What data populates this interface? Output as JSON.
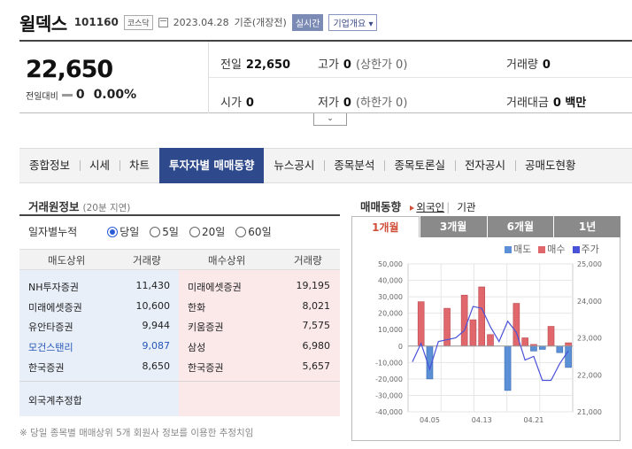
{
  "header": {
    "name": "윌덱스",
    "code": "101160",
    "market": "코스닥",
    "date": "2023.04.28",
    "basis": "기준(개장전)",
    "realtime": "실시간",
    "overview": "기업개요"
  },
  "summary": {
    "price": "22,650",
    "change_label": "전일대비",
    "change_value": "0",
    "change_pct": "0.00%",
    "prev_label": "전일",
    "prev_value": "22,650",
    "high_label": "고가",
    "high_value": "0",
    "high_sub": "(상한가 0)",
    "volume_label": "거래량",
    "volume_value": "0",
    "open_label": "시가",
    "open_value": "0",
    "low_label": "저가",
    "low_value": "0",
    "low_sub": "(하한가 0)",
    "amount_label": "거래대금",
    "amount_value": "0 백만"
  },
  "tabs": [
    "종합정보",
    "시세",
    "차트",
    "투자자별 매매동향",
    "뉴스공시",
    "종목분석",
    "종목토론실",
    "전자공시",
    "공매도현황"
  ],
  "active_tab": "투자자별 매매동향",
  "left": {
    "title": "거래원정보",
    "subtitle": "(20분 지연)",
    "period_label": "일자별누적",
    "periods": [
      "당일",
      "5일",
      "20일",
      "60일"
    ],
    "selected_period": "당일",
    "col_sell": "매도상위",
    "col_sell_vol": "거래량",
    "col_buy": "매수상위",
    "col_buy_vol": "거래량",
    "sell": [
      {
        "name": "NH투자증권",
        "vol": "11,430"
      },
      {
        "name": "미래에셋증권",
        "vol": "10,600"
      },
      {
        "name": "유안타증권",
        "vol": "9,944"
      },
      {
        "name": "모건스탠리",
        "vol": "9,087"
      },
      {
        "name": "한국증권",
        "vol": "8,650"
      }
    ],
    "buy": [
      {
        "name": "미래에셋증권",
        "vol": "19,195"
      },
      {
        "name": "한화",
        "vol": "8,021"
      },
      {
        "name": "키움증권",
        "vol": "7,575"
      },
      {
        "name": "삼성",
        "vol": "6,980"
      },
      {
        "name": "한국증권",
        "vol": "5,657"
      }
    ],
    "foreign_label": "외국계추정합",
    "note": "※ 당일 종목별 매매상위 5개 회원사 정보를 이용한 추정치임"
  },
  "right": {
    "title": "매매동향",
    "opt_foreign": "외국인",
    "opt_inst": "기관",
    "chart_tabs": [
      "1개월",
      "3개월",
      "6개월",
      "1년"
    ],
    "active_chart_tab": "1개월",
    "legend": [
      "매도",
      "매수",
      "주가"
    ],
    "colors": {
      "sell": "#5b8fd6",
      "buy": "#e0676c",
      "price": "#4a52d9"
    }
  },
  "chart_data": {
    "type": "bar",
    "x_ticks": [
      "04.05",
      "04.13",
      "04.21"
    ],
    "y_left_ticks": [
      "50,000",
      "40,000",
      "30,000",
      "20,000",
      "10,000",
      "0",
      "-10,000",
      "-20,000",
      "-30,000",
      "-40,000"
    ],
    "y_right_ticks": [
      "25,000",
      "24,000",
      "23,000",
      "22,000",
      "21,000"
    ],
    "ylim_left": [
      -40000,
      50000
    ],
    "ylim_right": [
      21000,
      25000
    ],
    "series": [
      {
        "name": "매수",
        "values": [
          0,
          27000,
          0,
          0,
          23000,
          0,
          31000,
          16000,
          36000,
          7000,
          0,
          0,
          26000,
          5000,
          1000,
          0,
          12000,
          0,
          2000
        ]
      },
      {
        "name": "매도",
        "values": [
          0,
          0,
          -20000,
          0,
          0,
          0,
          0,
          0,
          0,
          0,
          0,
          -27000,
          0,
          0,
          -3000,
          -2000,
          0,
          -4000,
          -13000
        ]
      },
      {
        "name": "주가",
        "values": [
          22350,
          22850,
          22150,
          22900,
          22950,
          23000,
          23200,
          23850,
          23800,
          23300,
          22900,
          23450,
          23150,
          22400,
          22500,
          21850,
          21850,
          22300,
          22650
        ]
      }
    ]
  }
}
